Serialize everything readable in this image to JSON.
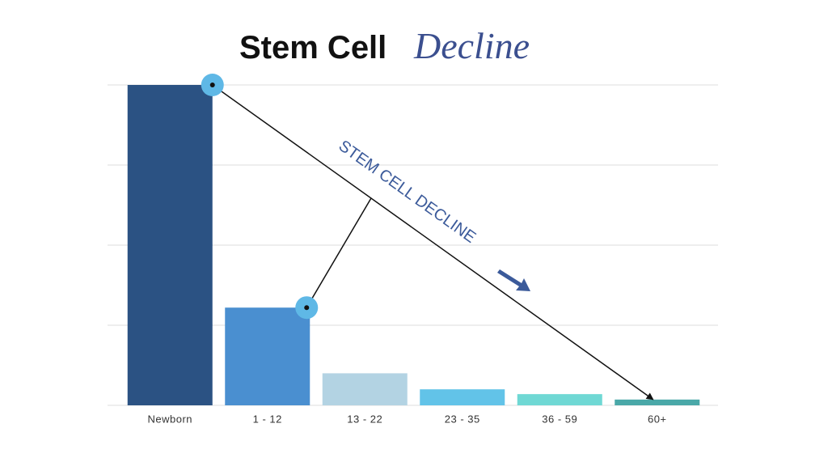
{
  "chart_data": {
    "type": "bar",
    "title": "Stem Cell",
    "title_accent": "Decline",
    "annotation": "STEM CELL DECLINE",
    "categories": [
      "Newborn",
      "1 - 12",
      "13 - 22",
      "23 - 35",
      "36 - 59",
      "60+"
    ],
    "values": [
      100,
      30.5,
      10,
      5,
      3.5,
      1.8
    ],
    "colors": [
      "#2b5283",
      "#4a8fd0",
      "#b3d3e3",
      "#62c3e8",
      "#6fd8d4",
      "#4aa8a8"
    ],
    "ylim": [
      0,
      100
    ],
    "yticks": [
      0,
      25,
      50,
      75,
      100
    ],
    "grid": true
  }
}
